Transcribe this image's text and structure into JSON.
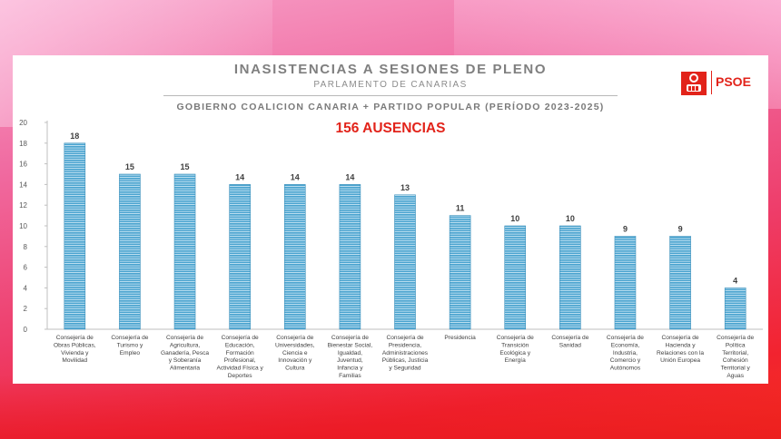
{
  "header": {
    "title": "INASISTENCIAS A SESIONES DE PLENO",
    "subtitle": "PARLAMENTO DE CANARIAS",
    "coalition": "GOBIERNO COALICION CANARIA + PARTIDO POPULAR (PERÍODO 2023-2025)",
    "total": "156 AUSENCIAS"
  },
  "logo": {
    "text": "PSOE",
    "icon": "rose-in-fist-logo",
    "color": "#e2231a"
  },
  "colors": {
    "bar": "#4aa3cf",
    "bar_stripe": "#ffffff",
    "total": "#e2231a"
  },
  "chart_data": {
    "type": "bar",
    "title": "INASISTENCIAS A SESIONES DE PLENO",
    "xlabel": "",
    "ylabel": "",
    "ylim": [
      0,
      20
    ],
    "yticks": [
      0,
      2,
      4,
      6,
      8,
      10,
      12,
      14,
      16,
      18,
      20
    ],
    "grid": false,
    "categories": [
      [
        "Consejería de",
        "Obras Públicas,",
        "Vivienda y",
        "Movilidad"
      ],
      [
        "Consejería de",
        "Turismo y",
        "Empleo"
      ],
      [
        "Consejería de",
        "Agricultura,",
        "Ganadería, Pesca",
        "y Soberanía",
        "Alimentaria"
      ],
      [
        "Consejería de",
        "Educación,",
        "Formación",
        "Profesional,",
        "Actividad Física y",
        "Deportes"
      ],
      [
        "Consejería de",
        "Universidades,",
        "Ciencia e",
        "Innovación y",
        "Cultura"
      ],
      [
        "Consejería de",
        "Bienestar Social,",
        "Igualdad,",
        "Juventud,",
        "Infancia y",
        "Familias"
      ],
      [
        "Consejería de",
        "Presidencia,",
        "Administraciones",
        "Públicas, Justicia",
        "y Seguridad"
      ],
      [
        "Presidencia"
      ],
      [
        "Consejería de",
        "Transición",
        "Ecológica y",
        "Energía"
      ],
      [
        "Consejería de",
        "Sanidad"
      ],
      [
        "Consejería de",
        "Economía,",
        "Industria,",
        "Comercio y",
        "Autónomos"
      ],
      [
        "Consejería de",
        "Hacienda y",
        "Relaciones con la",
        "Unión Europea"
      ],
      [
        "Consejería de",
        "Política",
        "Territorial,",
        "Cohesión",
        "Territorial y",
        "Aguas"
      ]
    ],
    "values": [
      18,
      15,
      15,
      14,
      14,
      14,
      13,
      11,
      10,
      10,
      9,
      9,
      4
    ]
  }
}
